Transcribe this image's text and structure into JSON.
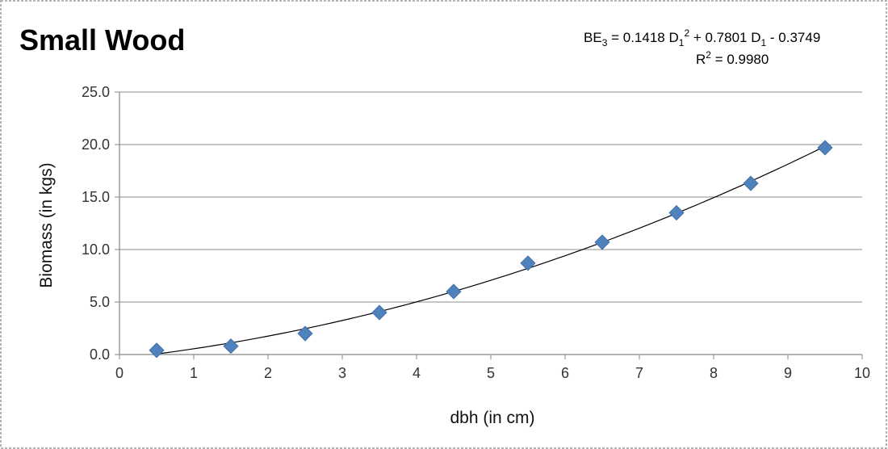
{
  "chart_data": {
    "type": "scatter",
    "title": "Small Wood",
    "xlabel": "dbh (in cm)",
    "ylabel": "Biomass (in kgs)",
    "xlim": [
      0,
      10
    ],
    "ylim": [
      0,
      25
    ],
    "xticks": [
      "0",
      "1",
      "2",
      "3",
      "4",
      "5",
      "6",
      "7",
      "8",
      "9",
      "10"
    ],
    "yticks": [
      "0.0",
      "5.0",
      "10.0",
      "15.0",
      "20.0",
      "25.0"
    ],
    "grid": "horizontal",
    "legend": "none",
    "marker": "diamond",
    "marker_color": "#4f81bd",
    "trendline_color": "#000000",
    "series": [
      {
        "x": [
          0.5,
          1.5,
          2.5,
          3.5,
          4.5,
          5.5,
          6.5,
          7.5,
          8.5,
          9.5
        ],
        "y": [
          0.4,
          0.8,
          2.0,
          4.0,
          6.0,
          8.7,
          10.7,
          13.5,
          16.3,
          19.7
        ]
      }
    ],
    "trendline": {
      "type": "polynomial",
      "coefficients": [
        0.1418,
        0.7801,
        -0.3749
      ]
    },
    "annotations": {
      "equation_prefix": "BE",
      "equation_sub": "3",
      "equation_mid1": " = 0.1418 D",
      "equation_sub1": "1",
      "equation_sup1": "2",
      "equation_mid2": " + 0.7801 D",
      "equation_sub2": "1",
      "equation_tail": " - 0.3749",
      "r2_prefix": "R",
      "r2_sup": "2",
      "r2_tail": " = 0.9980"
    }
  }
}
